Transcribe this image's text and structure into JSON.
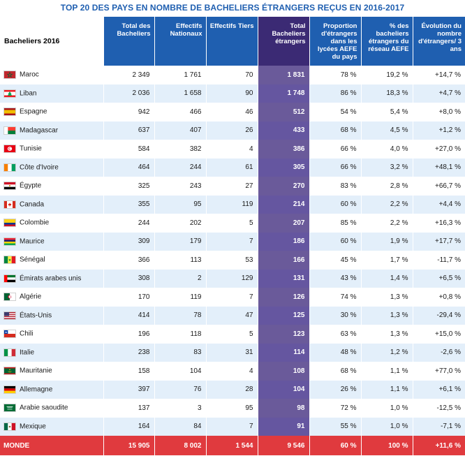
{
  "title": "TOP 20 DES PAYS EN NOMBRE DE BACHELIERS ÉTRANGERS REÇUS EN 2016-2017",
  "headers": [
    "Bacheliers 2016",
    "Total des Bacheliers",
    "Effectifs Nationaux",
    "Effectifs Tiers",
    "Total Bacheliers étrangers",
    "Proportion d'étrangers dans les lycées AEFE du pays",
    "% des bacheliers étrangers du réseau AEFE",
    "Évolution du nombre d'étrangers/ 3 ans"
  ],
  "rows": [
    {
      "country": "Maroc",
      "flag": "morocco-flag",
      "cells": [
        "2 349",
        "1 761",
        "70",
        "1 831",
        "78 %",
        "19,2 %",
        "+14,7 %"
      ]
    },
    {
      "country": "Liban",
      "flag": "lebanon-flag",
      "cells": [
        "2 036",
        "1 658",
        "90",
        "1 748",
        "86 %",
        "18,3 %",
        "+4,7 %"
      ]
    },
    {
      "country": "Espagne",
      "flag": "spain-flag",
      "cells": [
        "942",
        "466",
        "46",
        "512",
        "54 %",
        "5,4 %",
        "+8,0 %"
      ]
    },
    {
      "country": "Madagascar",
      "flag": "madagascar-flag",
      "cells": [
        "637",
        "407",
        "26",
        "433",
        "68 %",
        "4,5 %",
        "+1,2 %"
      ]
    },
    {
      "country": "Tunisie",
      "flag": "tunisia-flag",
      "cells": [
        "584",
        "382",
        "4",
        "386",
        "66 %",
        "4,0 %",
        "+27,0 %"
      ]
    },
    {
      "country": "Côte d'Ivoire",
      "flag": "cote-divoire-flag",
      "cells": [
        "464",
        "244",
        "61",
        "305",
        "66 %",
        "3,2 %",
        "+48,1 %"
      ]
    },
    {
      "country": "Égypte",
      "flag": "egypt-flag",
      "cells": [
        "325",
        "243",
        "27",
        "270",
        "83 %",
        "2,8 %",
        "+66,7 %"
      ]
    },
    {
      "country": "Canada",
      "flag": "canada-flag",
      "cells": [
        "355",
        "95",
        "119",
        "214",
        "60 %",
        "2,2 %",
        "+4,4 %"
      ]
    },
    {
      "country": "Colombie",
      "flag": "colombia-flag",
      "cells": [
        "244",
        "202",
        "5",
        "207",
        "85 %",
        "2,2 %",
        "+16,3 %"
      ]
    },
    {
      "country": "Maurice",
      "flag": "mauritius-flag",
      "cells": [
        "309",
        "179",
        "7",
        "186",
        "60 %",
        "1,9 %",
        "+17,7 %"
      ]
    },
    {
      "country": "Sénégal",
      "flag": "senegal-flag",
      "cells": [
        "366",
        "113",
        "53",
        "166",
        "45 %",
        "1,7 %",
        "-11,7 %"
      ]
    },
    {
      "country": "Émirats arabes unis",
      "flag": "uae-flag",
      "cells": [
        "308",
        "2",
        "129",
        "131",
        "43 %",
        "1,4 %",
        "+6,5 %"
      ]
    },
    {
      "country": "Algérie",
      "flag": "algeria-flag",
      "cells": [
        "170",
        "119",
        "7",
        "126",
        "74 %",
        "1,3 %",
        "+0,8 %"
      ]
    },
    {
      "country": "États-Unis",
      "flag": "usa-flag",
      "cells": [
        "414",
        "78",
        "47",
        "125",
        "30 %",
        "1,3 %",
        "-29,4 %"
      ]
    },
    {
      "country": "Chili",
      "flag": "chile-flag",
      "cells": [
        "196",
        "118",
        "5",
        "123",
        "63 %",
        "1,3 %",
        "+15,0 %"
      ]
    },
    {
      "country": "Italie",
      "flag": "italy-flag",
      "cells": [
        "238",
        "83",
        "31",
        "114",
        "48 %",
        "1,2 %",
        "-2,6 %"
      ]
    },
    {
      "country": "Mauritanie",
      "flag": "mauritania-flag",
      "cells": [
        "158",
        "104",
        "4",
        "108",
        "68 %",
        "1,1 %",
        "+77,0 %"
      ]
    },
    {
      "country": "Allemagne",
      "flag": "germany-flag",
      "cells": [
        "397",
        "76",
        "28",
        "104",
        "26 %",
        "1,1 %",
        "+6,1 %"
      ]
    },
    {
      "country": "Arabie saoudite",
      "flag": "saudi-arabia-flag",
      "cells": [
        "137",
        "3",
        "95",
        "98",
        "72 %",
        "1,0 %",
        "-12,5 %"
      ]
    },
    {
      "country": "Mexique",
      "flag": "mexico-flag",
      "cells": [
        "164",
        "84",
        "7",
        "91",
        "55 %",
        "1,0 %",
        "-7,1 %"
      ]
    }
  ],
  "total": {
    "label": "MONDE",
    "cells": [
      "15 905",
      "8 002",
      "1 544",
      "9 546",
      "60 %",
      "100 %",
      "+11,6 %"
    ]
  }
}
